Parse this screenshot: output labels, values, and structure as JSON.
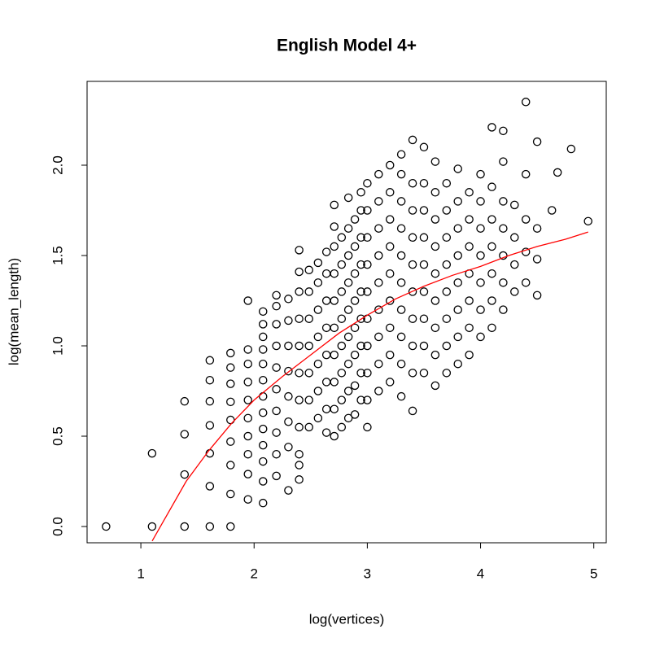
{
  "chart_data": {
    "type": "scatter",
    "title": "English Model 4+",
    "x_label": "log(vertices)",
    "y_label": "log(mean_length)",
    "xlim": [
      0.525,
      5.11
    ],
    "ylim": [
      -0.09,
      2.464
    ],
    "xticks": [
      1,
      2,
      3,
      4,
      5
    ],
    "yticks": [
      {
        "value": 0,
        "label": "0.0"
      },
      {
        "value": 0.5,
        "label": "0.5"
      },
      {
        "value": 1,
        "label": "1.0"
      },
      {
        "value": 1.5,
        "label": "1.5"
      },
      {
        "value": 2,
        "label": "2.0"
      }
    ],
    "points": {
      "color": "#000000",
      "x": [
        0.693,
        1.099,
        1.099,
        1.386,
        1.386,
        1.386,
        1.386,
        1.609,
        1.609,
        1.609,
        1.609,
        1.609,
        1.609,
        1.609,
        1.792,
        1.792,
        1.792,
        1.792,
        1.792,
        1.792,
        1.792,
        1.792,
        1.792,
        1.946,
        1.946,
        1.946,
        1.946,
        1.946,
        1.946,
        1.946,
        1.946,
        1.946,
        1.946,
        2.079,
        2.079,
        2.079,
        2.079,
        2.079,
        2.079,
        2.079,
        2.079,
        2.079,
        2.079,
        2.079,
        2.079,
        2.079,
        2.197,
        2.197,
        2.197,
        2.197,
        2.197,
        2.197,
        2.197,
        2.197,
        2.197,
        2.197,
        2.303,
        2.303,
        2.303,
        2.303,
        2.303,
        2.303,
        2.303,
        2.303,
        2.398,
        2.398,
        2.398,
        2.398,
        2.398,
        2.398,
        2.398,
        2.398,
        2.398,
        2.398,
        2.398,
        2.485,
        2.485,
        2.485,
        2.485,
        2.485,
        2.485,
        2.485,
        2.565,
        2.565,
        2.565,
        2.565,
        2.565,
        2.565,
        2.565,
        2.639,
        2.639,
        2.639,
        2.639,
        2.639,
        2.639,
        2.639,
        2.639,
        2.708,
        2.708,
        2.708,
        2.708,
        2.708,
        2.708,
        2.708,
        2.708,
        2.708,
        2.708,
        2.773,
        2.773,
        2.773,
        2.773,
        2.773,
        2.773,
        2.773,
        2.773,
        2.833,
        2.833,
        2.833,
        2.833,
        2.833,
        2.833,
        2.833,
        2.833,
        2.833,
        2.89,
        2.89,
        2.89,
        2.89,
        2.89,
        2.89,
        2.89,
        2.89,
        2.944,
        2.944,
        2.944,
        2.944,
        2.944,
        2.944,
        2.944,
        2.944,
        2.944,
        3.0,
        3.0,
        3.0,
        3.0,
        3.0,
        3.0,
        3.0,
        3.0,
        3.0,
        3.0,
        3.1,
        3.1,
        3.1,
        3.1,
        3.1,
        3.1,
        3.1,
        3.1,
        3.1,
        3.2,
        3.2,
        3.2,
        3.2,
        3.2,
        3.2,
        3.2,
        3.2,
        3.2,
        3.3,
        3.3,
        3.3,
        3.3,
        3.3,
        3.3,
        3.3,
        3.3,
        3.3,
        3.3,
        3.4,
        3.4,
        3.4,
        3.4,
        3.4,
        3.4,
        3.4,
        3.4,
        3.4,
        3.4,
        3.5,
        3.5,
        3.5,
        3.5,
        3.5,
        3.5,
        3.5,
        3.5,
        3.5,
        3.6,
        3.6,
        3.6,
        3.6,
        3.6,
        3.6,
        3.6,
        3.6,
        3.6,
        3.7,
        3.7,
        3.7,
        3.7,
        3.7,
        3.7,
        3.7,
        3.7,
        3.8,
        3.8,
        3.8,
        3.8,
        3.8,
        3.8,
        3.8,
        3.8,
        3.9,
        3.9,
        3.9,
        3.9,
        3.9,
        3.9,
        3.9,
        4.0,
        4.0,
        4.0,
        4.0,
        4.0,
        4.0,
        4.0,
        4.1,
        4.1,
        4.1,
        4.1,
        4.1,
        4.1,
        4.1,
        4.2,
        4.2,
        4.2,
        4.2,
        4.2,
        4.2,
        4.2,
        4.3,
        4.3,
        4.3,
        4.3,
        4.4,
        4.4,
        4.4,
        4.4,
        4.4,
        4.5,
        4.5,
        4.5,
        4.5,
        4.63,
        4.68,
        4.8,
        4.95
      ],
      "y": [
        0,
        0,
        0.405,
        0,
        0.288,
        0.511,
        0.693,
        0,
        0.223,
        0.405,
        0.56,
        0.693,
        0.81,
        0.92,
        0,
        0.18,
        0.34,
        0.47,
        0.59,
        0.69,
        0.79,
        0.88,
        0.96,
        0.15,
        0.29,
        0.4,
        0.5,
        0.6,
        0.7,
        0.8,
        0.9,
        0.98,
        1.25,
        0.13,
        0.25,
        0.36,
        0.45,
        0.54,
        0.63,
        0.72,
        0.81,
        0.9,
        0.98,
        1.05,
        1.12,
        1.19,
        0.28,
        0.4,
        0.52,
        0.64,
        0.76,
        0.88,
        1.0,
        1.12,
        1.22,
        1.28,
        0.2,
        0.44,
        0.58,
        0.72,
        0.86,
        1.0,
        1.14,
        1.26,
        0.26,
        0.34,
        0.4,
        0.55,
        0.7,
        0.85,
        1.0,
        1.15,
        1.3,
        1.41,
        1.53,
        0.55,
        0.7,
        0.85,
        1.0,
        1.15,
        1.3,
        1.42,
        0.6,
        0.75,
        0.9,
        1.05,
        1.2,
        1.35,
        1.46,
        0.52,
        0.65,
        0.8,
        0.95,
        1.1,
        1.25,
        1.4,
        1.52,
        0.5,
        0.65,
        0.8,
        0.95,
        1.1,
        1.25,
        1.4,
        1.55,
        1.66,
        1.78,
        0.55,
        0.7,
        0.85,
        1.0,
        1.15,
        1.3,
        1.45,
        1.6,
        0.6,
        0.75,
        0.9,
        1.05,
        1.2,
        1.35,
        1.5,
        1.65,
        1.82,
        0.62,
        0.78,
        0.95,
        1.1,
        1.25,
        1.4,
        1.55,
        1.7,
        0.7,
        0.85,
        1.0,
        1.15,
        1.3,
        1.45,
        1.6,
        1.75,
        1.85,
        0.55,
        0.7,
        0.85,
        1.0,
        1.15,
        1.3,
        1.45,
        1.6,
        1.75,
        1.9,
        0.75,
        0.9,
        1.05,
        1.2,
        1.35,
        1.5,
        1.65,
        1.8,
        1.95,
        0.8,
        0.95,
        1.1,
        1.25,
        1.4,
        1.55,
        1.7,
        1.85,
        2.0,
        0.72,
        0.9,
        1.05,
        1.2,
        1.35,
        1.5,
        1.65,
        1.8,
        1.95,
        2.06,
        0.64,
        0.85,
        1.0,
        1.15,
        1.3,
        1.45,
        1.6,
        1.75,
        1.9,
        2.14,
        0.85,
        1.0,
        1.15,
        1.3,
        1.45,
        1.6,
        1.75,
        1.9,
        2.1,
        0.78,
        0.95,
        1.1,
        1.25,
        1.4,
        1.55,
        1.7,
        1.85,
        2.02,
        0.85,
        1.0,
        1.15,
        1.3,
        1.45,
        1.6,
        1.75,
        1.9,
        0.9,
        1.05,
        1.2,
        1.35,
        1.5,
        1.65,
        1.8,
        1.98,
        0.95,
        1.1,
        1.25,
        1.4,
        1.55,
        1.7,
        1.85,
        1.05,
        1.2,
        1.35,
        1.5,
        1.65,
        1.8,
        1.95,
        1.1,
        1.25,
        1.4,
        1.55,
        1.7,
        1.88,
        2.21,
        1.2,
        1.35,
        1.5,
        1.65,
        1.8,
        2.02,
        2.19,
        1.3,
        1.45,
        1.6,
        1.78,
        1.35,
        1.52,
        1.7,
        1.95,
        2.35,
        1.28,
        1.48,
        1.65,
        2.13,
        1.75,
        1.96,
        2.09,
        1.69
      ]
    },
    "curve": {
      "color": "#ff0000",
      "x": [
        1.1,
        1.2,
        1.4,
        1.6,
        1.8,
        2.0,
        2.25,
        2.5,
        2.75,
        3.0,
        3.25,
        3.5,
        3.75,
        4.0,
        4.25,
        4.5,
        4.75,
        4.95
      ],
      "y": [
        -0.08,
        0.03,
        0.25,
        0.42,
        0.57,
        0.7,
        0.83,
        0.95,
        1.07,
        1.17,
        1.26,
        1.33,
        1.39,
        1.44,
        1.5,
        1.55,
        1.59,
        1.63
      ]
    }
  }
}
